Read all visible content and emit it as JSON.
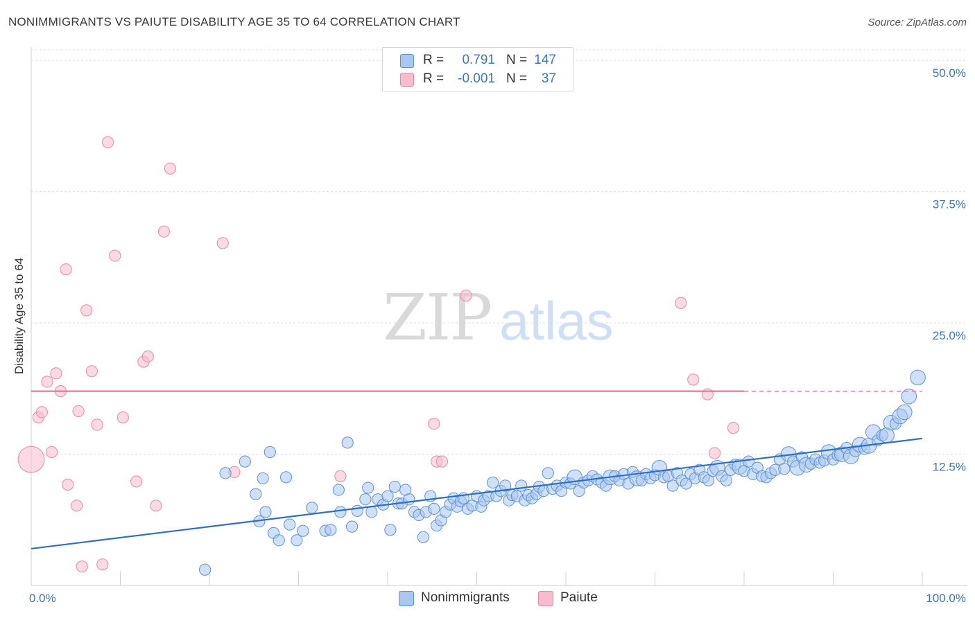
{
  "header": {
    "title": "NONIMMIGRANTS VS PAIUTE DISABILITY AGE 35 TO 64 CORRELATION CHART",
    "source": "Source: ZipAtlas.com"
  },
  "legend": {
    "rows": [
      {
        "r_label": "R =",
        "r_value": "0.791",
        "n_label": "N =",
        "n_value": "147",
        "color": "#a9c7ef"
      },
      {
        "r_label": "R =",
        "r_value": "-0.001",
        "n_label": "N =",
        "n_value": "37",
        "color": "#f7bccd"
      }
    ]
  },
  "bottom_legend": [
    {
      "label": "Nonimmigrants",
      "color": "#a9c7ef"
    },
    {
      "label": "Paiute",
      "color": "#f7bccd"
    }
  ],
  "watermark": {
    "zip": "ZIP",
    "atlas": "atlas"
  },
  "chart_data": {
    "type": "scatter",
    "title": "NONIMMIGRANTS VS PAIUTE DISABILITY AGE 35 TO 64 CORRELATION CHART",
    "ylabel": "Disability Age 35 to 64",
    "xlabel": "",
    "xlim": [
      0,
      100
    ],
    "ylim": [
      0,
      51
    ],
    "x_tick_labels": [
      "0.0%",
      "100.0%"
    ],
    "y_ticks": [
      12.5,
      25.0,
      37.5,
      50.0
    ],
    "y_tick_labels": [
      "12.5%",
      "25.0%",
      "37.5%",
      "50.0%"
    ],
    "grid": true,
    "colors": {
      "nonimmigrants_fill": "#a9c7ef",
      "nonimmigrants_stroke": "#5b93d8",
      "nonimmigrants_line": "#2a6fcc",
      "paiute_fill": "#f7bccd",
      "paiute_stroke": "#e88aa6",
      "paiute_line": "#e8678e"
    },
    "series": [
      {
        "name": "Nonimmigrants",
        "trend": {
          "x": [
            0,
            100
          ],
          "y": [
            3.5,
            14.0
          ]
        },
        "points": [
          [
            19.5,
            1.5,
            6
          ],
          [
            21.8,
            10.7,
            6
          ],
          [
            24.0,
            11.8,
            6
          ],
          [
            25.2,
            8.7,
            6
          ],
          [
            25.6,
            6.1,
            6
          ],
          [
            26.0,
            10.2,
            6
          ],
          [
            26.3,
            7.0,
            6
          ],
          [
            26.8,
            12.7,
            6
          ],
          [
            27.2,
            5.0,
            6
          ],
          [
            27.8,
            4.3,
            6
          ],
          [
            28.6,
            10.3,
            6
          ],
          [
            29.0,
            5.8,
            6
          ],
          [
            29.8,
            4.3,
            6
          ],
          [
            30.5,
            5.2,
            6
          ],
          [
            31.5,
            7.4,
            6
          ],
          [
            33.0,
            5.2,
            6
          ],
          [
            33.6,
            5.3,
            6
          ],
          [
            34.5,
            9.1,
            6
          ],
          [
            34.7,
            7.0,
            6
          ],
          [
            35.5,
            13.6,
            6
          ],
          [
            36.0,
            5.6,
            6
          ],
          [
            36.6,
            7.1,
            6
          ],
          [
            37.5,
            8.2,
            6
          ],
          [
            37.8,
            9.3,
            6
          ],
          [
            38.2,
            7.0,
            6
          ],
          [
            38.9,
            8.2,
            6
          ],
          [
            39.5,
            7.7,
            6
          ],
          [
            40.0,
            8.5,
            6
          ],
          [
            40.3,
            5.3,
            6
          ],
          [
            40.8,
            9.4,
            6
          ],
          [
            41.2,
            7.8,
            6
          ],
          [
            41.6,
            7.8,
            6
          ],
          [
            42.0,
            9.1,
            6
          ],
          [
            42.4,
            8.2,
            6
          ],
          [
            43.0,
            7.0,
            6
          ],
          [
            43.5,
            6.7,
            6
          ],
          [
            44.0,
            4.6,
            6
          ],
          [
            44.3,
            7.0,
            6
          ],
          [
            44.8,
            8.5,
            6
          ],
          [
            45.2,
            7.3,
            6
          ],
          [
            45.5,
            5.7,
            6
          ],
          [
            46.0,
            6.2,
            6
          ],
          [
            46.5,
            7.0,
            6
          ],
          [
            47.0,
            7.7,
            6
          ],
          [
            47.4,
            8.3,
            6
          ],
          [
            47.8,
            7.5,
            6
          ],
          [
            48.2,
            8.0,
            6
          ],
          [
            48.5,
            8.3,
            6
          ],
          [
            49.0,
            7.3,
            6
          ],
          [
            49.5,
            7.6,
            6
          ],
          [
            50.0,
            8.5,
            6
          ],
          [
            50.5,
            7.5,
            6
          ],
          [
            50.8,
            8.1,
            6
          ],
          [
            51.3,
            8.5,
            6
          ],
          [
            51.8,
            9.8,
            6
          ],
          [
            52.2,
            8.5,
            6
          ],
          [
            52.7,
            9.0,
            6
          ],
          [
            53.2,
            9.5,
            6
          ],
          [
            53.6,
            8.1,
            6
          ],
          [
            54.0,
            8.6,
            6
          ],
          [
            54.5,
            8.5,
            6
          ],
          [
            55.0,
            9.5,
            6
          ],
          [
            55.4,
            8.1,
            6
          ],
          [
            55.8,
            8.6,
            6
          ],
          [
            56.2,
            8.3,
            6
          ],
          [
            56.7,
            8.7,
            6
          ],
          [
            57.0,
            9.4,
            6
          ],
          [
            57.5,
            9.0,
            6
          ],
          [
            58.0,
            10.7,
            6
          ],
          [
            58.5,
            9.2,
            6
          ],
          [
            59.0,
            9.5,
            6
          ],
          [
            59.5,
            9.0,
            6
          ],
          [
            60.0,
            9.8,
            6
          ],
          [
            60.5,
            9.7,
            6
          ],
          [
            61.0,
            10.3,
            8
          ],
          [
            61.5,
            9.0,
            6
          ],
          [
            62.0,
            9.8,
            6
          ],
          [
            62.5,
            10.0,
            6
          ],
          [
            63.0,
            10.4,
            6
          ],
          [
            63.5,
            10.1,
            6
          ],
          [
            64.0,
            9.8,
            6
          ],
          [
            64.5,
            9.5,
            6
          ],
          [
            65.0,
            10.3,
            8
          ],
          [
            65.5,
            10.4,
            6
          ],
          [
            66.0,
            10.0,
            6
          ],
          [
            66.5,
            10.6,
            6
          ],
          [
            67.0,
            9.7,
            6
          ],
          [
            67.5,
            10.8,
            6
          ],
          [
            68.0,
            10.2,
            8
          ],
          [
            68.5,
            10.0,
            6
          ],
          [
            69.0,
            10.6,
            6
          ],
          [
            69.5,
            10.2,
            6
          ],
          [
            70.0,
            10.5,
            6
          ],
          [
            70.5,
            11.2,
            8
          ],
          [
            71.0,
            10.3,
            6
          ],
          [
            71.5,
            10.4,
            6
          ],
          [
            72.0,
            9.5,
            6
          ],
          [
            72.5,
            10.7,
            6
          ],
          [
            73.0,
            10.0,
            6
          ],
          [
            73.5,
            9.7,
            6
          ],
          [
            74.0,
            10.6,
            6
          ],
          [
            74.5,
            10.2,
            6
          ],
          [
            75.0,
            11.0,
            6
          ],
          [
            75.5,
            10.3,
            6
          ],
          [
            76.0,
            10.0,
            6
          ],
          [
            76.5,
            10.9,
            6
          ],
          [
            77.0,
            11.2,
            8
          ],
          [
            77.5,
            10.4,
            6
          ],
          [
            78.0,
            10.0,
            6
          ],
          [
            78.5,
            11.0,
            6
          ],
          [
            79.0,
            11.5,
            6
          ],
          [
            79.5,
            11.3,
            8
          ],
          [
            80.0,
            10.9,
            6
          ],
          [
            80.5,
            11.8,
            6
          ],
          [
            81.0,
            10.6,
            6
          ],
          [
            81.5,
            11.2,
            6
          ],
          [
            82.0,
            10.4,
            6
          ],
          [
            82.5,
            10.3,
            6
          ],
          [
            83.0,
            10.7,
            6
          ],
          [
            83.5,
            11.0,
            6
          ],
          [
            84.0,
            12.0,
            6
          ],
          [
            84.5,
            11.1,
            6
          ],
          [
            85.0,
            12.5,
            8
          ],
          [
            85.5,
            11.8,
            6
          ],
          [
            86.0,
            11.2,
            8
          ],
          [
            86.5,
            12.2,
            6
          ],
          [
            87.0,
            11.5,
            8
          ],
          [
            87.5,
            11.6,
            6
          ],
          [
            88.0,
            12.0,
            6
          ],
          [
            88.5,
            11.7,
            6
          ],
          [
            89.0,
            11.9,
            6
          ],
          [
            89.5,
            12.7,
            8
          ],
          [
            90.0,
            12.0,
            6
          ],
          [
            90.5,
            12.4,
            6
          ],
          [
            91.0,
            12.5,
            8
          ],
          [
            91.5,
            13.1,
            6
          ],
          [
            92.0,
            12.3,
            8
          ],
          [
            92.5,
            12.8,
            6
          ],
          [
            93.0,
            13.4,
            8
          ],
          [
            93.5,
            13.0,
            6
          ],
          [
            94.0,
            13.3,
            8
          ],
          [
            94.5,
            14.6,
            8
          ],
          [
            95.0,
            13.8,
            6
          ],
          [
            95.5,
            14.3,
            6
          ],
          [
            96.0,
            14.3,
            8
          ],
          [
            96.5,
            15.5,
            8
          ],
          [
            97.0,
            15.4,
            6
          ],
          [
            97.5,
            16.1,
            8
          ],
          [
            98.0,
            16.5,
            8
          ],
          [
            98.5,
            18.0,
            8
          ],
          [
            99.5,
            19.8,
            8
          ]
        ]
      },
      {
        "name": "Paiute",
        "trend": {
          "x": [
            0,
            80
          ],
          "y": [
            18.5,
            18.5
          ],
          "dashed_extension_to": 100
        },
        "points": [
          [
            0.0,
            12.0,
            14
          ],
          [
            0.8,
            16.0,
            6
          ],
          [
            1.2,
            16.5,
            6
          ],
          [
            1.8,
            19.4,
            6
          ],
          [
            2.3,
            12.7,
            6
          ],
          [
            2.8,
            20.2,
            6
          ],
          [
            3.3,
            18.5,
            6
          ],
          [
            3.9,
            30.1,
            6
          ],
          [
            4.1,
            9.6,
            6
          ],
          [
            5.1,
            7.6,
            6
          ],
          [
            5.3,
            16.6,
            6
          ],
          [
            5.7,
            1.8,
            6
          ],
          [
            6.2,
            26.2,
            6
          ],
          [
            6.8,
            20.4,
            6
          ],
          [
            7.4,
            15.3,
            6
          ],
          [
            8.0,
            2.0,
            6
          ],
          [
            8.6,
            42.2,
            6
          ],
          [
            9.4,
            31.4,
            6
          ],
          [
            10.3,
            16.0,
            6
          ],
          [
            11.8,
            9.9,
            6
          ],
          [
            12.6,
            21.3,
            6
          ],
          [
            13.1,
            21.8,
            6
          ],
          [
            14.0,
            7.6,
            6
          ],
          [
            14.9,
            33.7,
            6
          ],
          [
            15.6,
            39.7,
            6
          ],
          [
            21.5,
            32.6,
            6
          ],
          [
            22.8,
            10.8,
            6
          ],
          [
            34.7,
            10.4,
            6
          ],
          [
            45.2,
            15.4,
            6
          ],
          [
            45.5,
            11.8,
            6
          ],
          [
            46.1,
            11.8,
            6
          ],
          [
            48.8,
            27.6,
            6
          ],
          [
            72.9,
            26.9,
            6
          ],
          [
            74.3,
            19.6,
            6
          ],
          [
            75.9,
            18.2,
            6
          ],
          [
            76.7,
            12.6,
            6
          ],
          [
            78.8,
            15.0,
            6
          ]
        ]
      }
    ]
  }
}
